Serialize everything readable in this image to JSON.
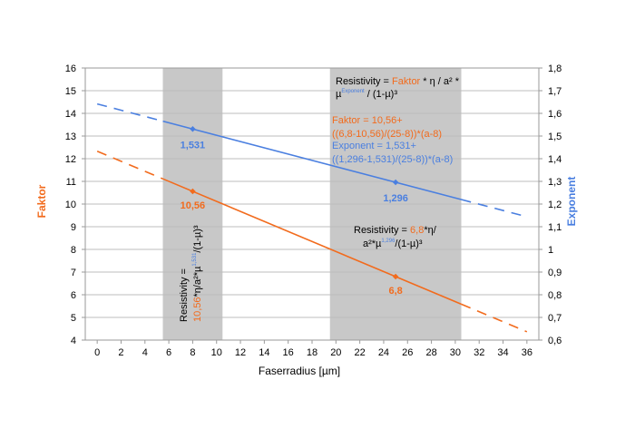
{
  "chart_data": {
    "type": "line",
    "title": "",
    "xlabel": "Faserradius [µm]",
    "ylabel_left": "Faktor",
    "ylabel_right": "Exponent",
    "xlim": [
      -1,
      37
    ],
    "ylim_left": [
      4,
      16
    ],
    "ylim_right": [
      0.6,
      1.8
    ],
    "x_ticks": [
      "0",
      "2",
      "4",
      "6",
      "8",
      "10",
      "12",
      "14",
      "16",
      "18",
      "20",
      "22",
      "24",
      "26",
      "28",
      "30",
      "32",
      "34",
      "36"
    ],
    "y_left_ticks": [
      "4",
      "5",
      "6",
      "7",
      "8",
      "9",
      "10",
      "11",
      "12",
      "13",
      "14",
      "15",
      "16"
    ],
    "y_right_ticks": [
      "0,6",
      "0,7",
      "0,8",
      "0,9",
      "1",
      "1,1",
      "1,2",
      "1,3",
      "1,4",
      "1,5",
      "1,6",
      "1,7",
      "1,8"
    ],
    "grid": "horizontal",
    "colors": {
      "faktor": "#f26b1d",
      "exponent": "#4a7fe0",
      "band": "#c8c8c8",
      "grid": "#bdbdbd"
    },
    "shaded_bands": [
      {
        "x_from": 5.5,
        "x_to": 10.5
      },
      {
        "x_from": 19.5,
        "x_to": 30.5
      }
    ],
    "series": [
      {
        "key": "faktor",
        "axis": "left",
        "solid_x": [
          5.5,
          30.5
        ],
        "dashed_x": [
          [
            0,
            5.5
          ],
          [
            30.5,
            36
          ]
        ],
        "points": [
          {
            "x": 8,
            "y": 10.56,
            "label": "10,56"
          },
          {
            "x": 25,
            "y": 6.8,
            "label": "6,8"
          }
        ]
      },
      {
        "key": "exponent",
        "axis": "right",
        "solid_x": [
          5.5,
          30.5
        ],
        "dashed_x": [
          [
            0,
            5.5
          ],
          [
            30.5,
            36
          ]
        ],
        "points": [
          {
            "x": 8,
            "y": 1.531,
            "label": "1,531"
          },
          {
            "x": 25,
            "y": 1.296,
            "label": "1,296"
          }
        ]
      }
    ],
    "annotations": {
      "main_formula": {
        "line1_a": "Resistivity = ",
        "line1_b": "Faktor",
        "line1_c": " * η / a² *",
        "line2_a": "µ",
        "line2_b": "Exponent",
        "line2_c": " / (1-µ)³"
      },
      "faktor_formula": [
        "Faktor = 10,56+",
        "((6,8-10,56)/(25-8))*(a-8)"
      ],
      "exponent_formula": [
        "Exponent = 1,531+",
        "((1,296-1,531)/(25-8))*(a-8)"
      ],
      "right_band_formula": {
        "line1_a": "Resistivity = ",
        "line1_b": "6,8",
        "line1_c": "*η/",
        "line2_a": "a²*µ",
        "line2_b": "1,296",
        "line2_c": "/(1-µ)³"
      },
      "left_band_formula": {
        "line1": "Resistivity =",
        "line2_a": "10,56",
        "line2_b": "*η/a²*µ",
        "line2_c": "1,531",
        "line2_d": "/(1-µ)³"
      }
    }
  }
}
